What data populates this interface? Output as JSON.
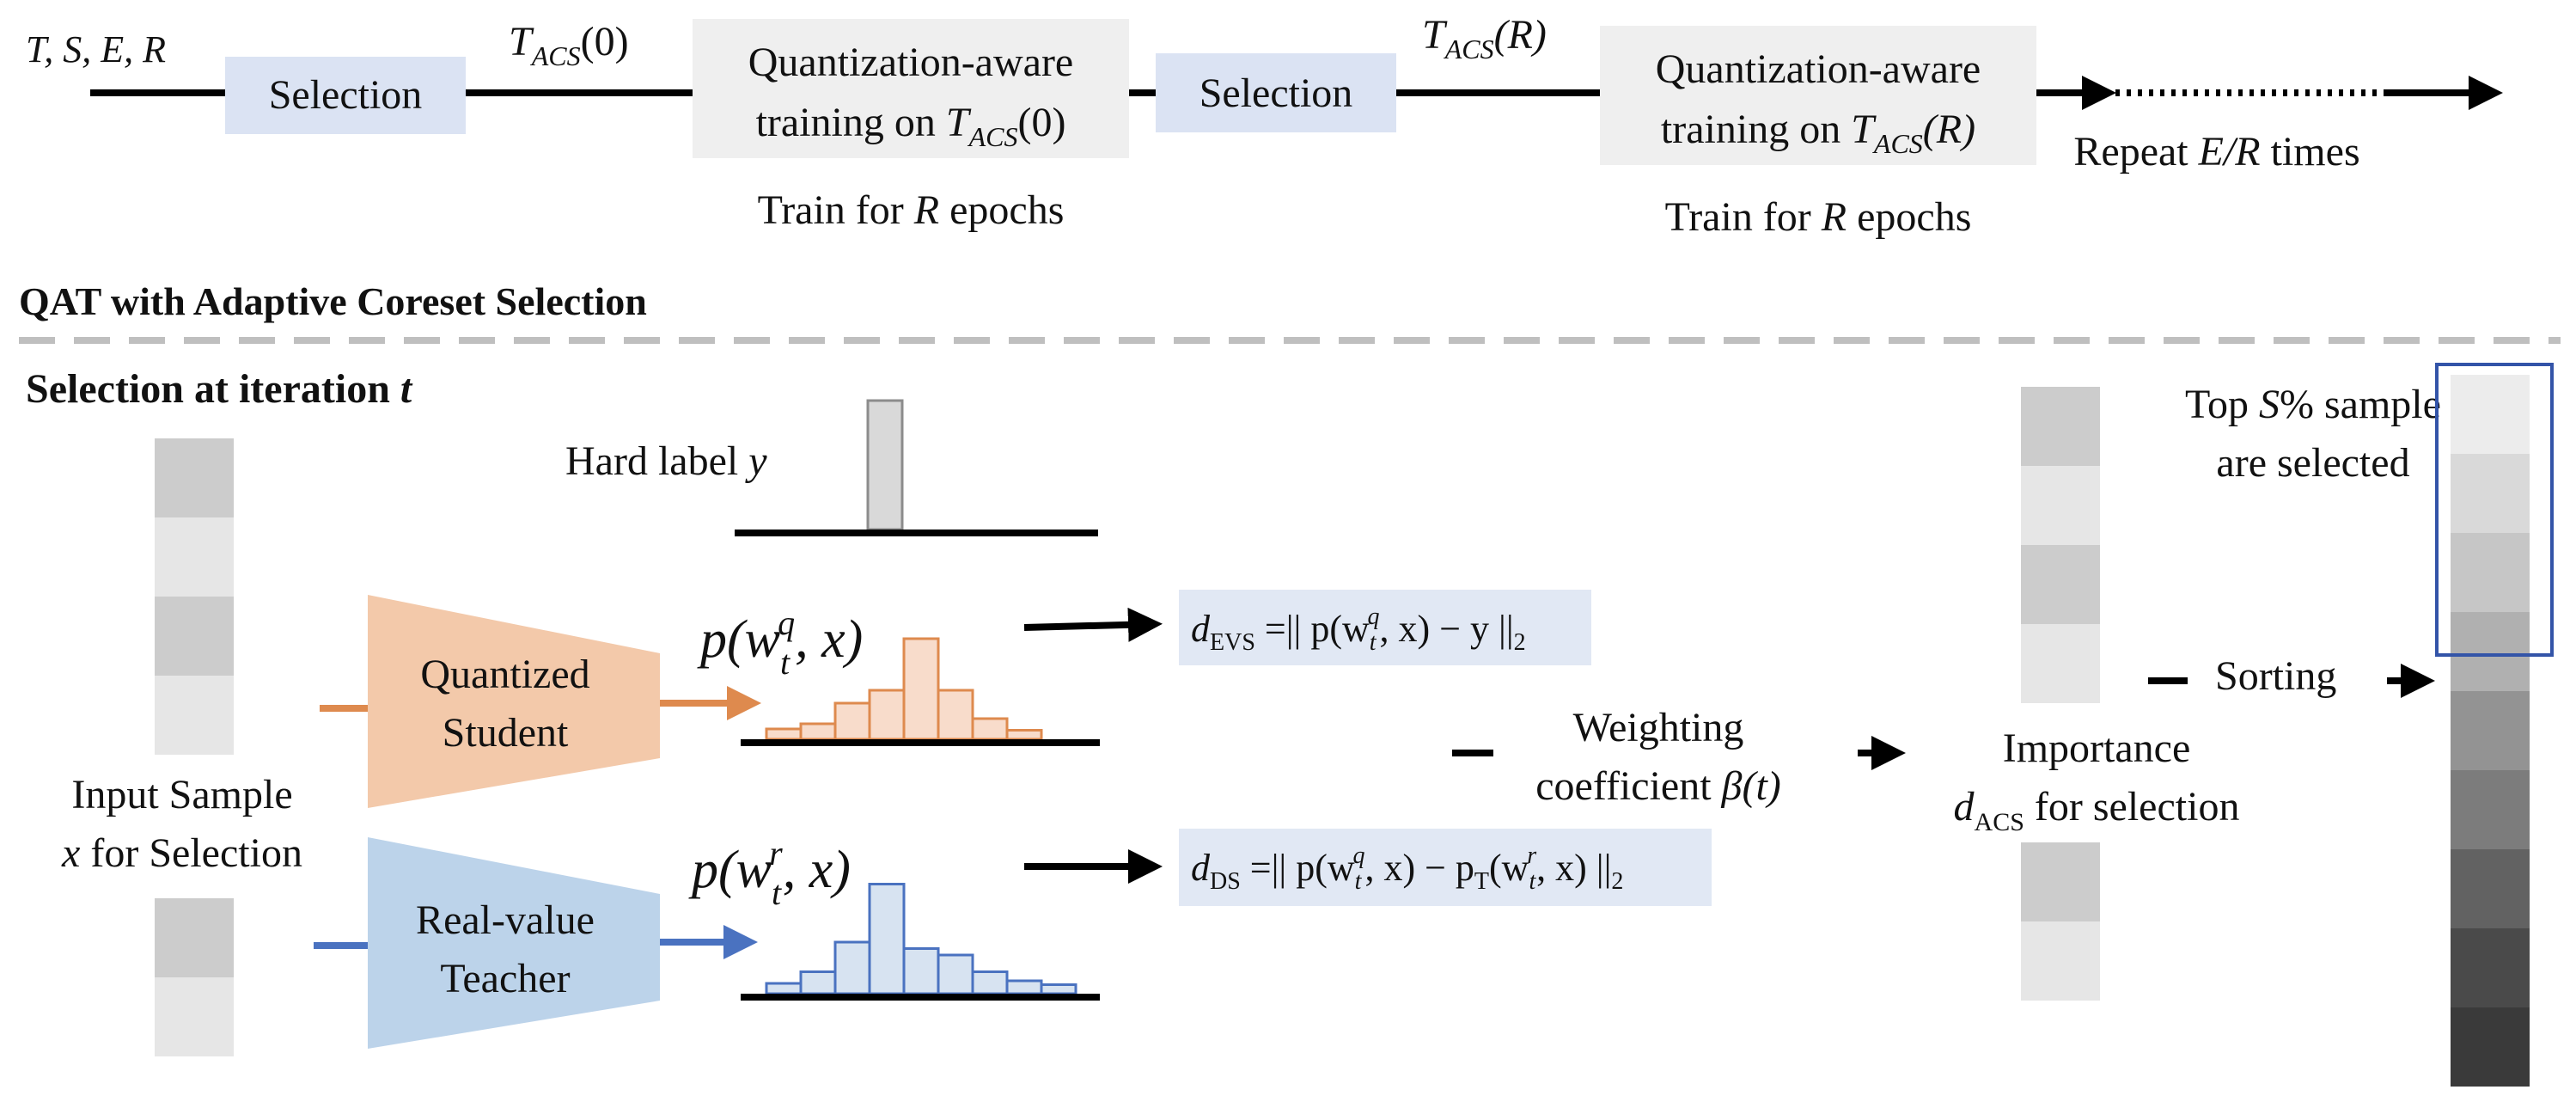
{
  "colors": {
    "selection_box": "#dbe3f3",
    "train_box": "#efefef",
    "formula_box": "#e1e8f4",
    "student": "#f3c9aa",
    "student_line": "#de8a4e",
    "student_bar": "#f8dccb",
    "teacher": "#bcd3ea",
    "teacher_line": "#4a72c0",
    "teacher_bar": "#d7e3f1",
    "divider": "#bfbfbf",
    "highlight_frame": "#3354a8"
  },
  "pipeline": {
    "inputs_label": "T, S, E, R",
    "selection_1": "Selection",
    "tacs0": {
      "base": "T",
      "sub": "ACS",
      "arg": "(0)"
    },
    "train_box_1": {
      "line1": "Quantization-aware",
      "line2_prefix": "training on ",
      "base": "T",
      "sub": "ACS",
      "arg": "(0)"
    },
    "train_caption_1": {
      "prefix": "Train for ",
      "var": "R",
      "suffix": " epochs"
    },
    "selection_2": "Selection",
    "tacsR": {
      "base": "T",
      "sub": "ACS",
      "arg": "(R)"
    },
    "train_box_2": {
      "line1": "Quantization-aware",
      "line2_prefix": "training on ",
      "base": "T",
      "sub": "ACS",
      "arg": "(R)"
    },
    "train_caption_2": {
      "prefix": "Train for ",
      "var": "R",
      "suffix": " epochs"
    },
    "repeat": {
      "prefix": "Repeat ",
      "var": "E/R",
      "suffix": " times"
    }
  },
  "section_title": "QAT with Adaptive Coreset Selection",
  "subsection": {
    "prefix": "Selection at iteration ",
    "var": "t"
  },
  "input_sample": {
    "line1": "Input Sample",
    "line2_var": "x",
    "line2_rest": " for Selection"
  },
  "hard_label": {
    "prefix": "Hard label ",
    "var": "y"
  },
  "student": {
    "line1": "Quantized",
    "line2": "Student"
  },
  "teacher": {
    "line1": "Real-value",
    "line2": "Teacher"
  },
  "student_output": {
    "fn": "p(w",
    "sub": "t",
    "sup": "q",
    "rest": ", x)"
  },
  "teacher_output": {
    "fn": "p(w",
    "sub": "t",
    "sup": "r",
    "rest": ", x)"
  },
  "d_evs": {
    "d": "d",
    "d_sub": "EVS",
    "eq": " =|| p(w",
    "w_sub": "t",
    "w_sup": "q",
    "tail": ", x) − y ||",
    "norm_sub": "2"
  },
  "d_ds": {
    "d": "d",
    "d_sub": "DS",
    "eq": " =|| p(w",
    "w_sub": "t",
    "w_sup": "q",
    "mid": ", x) − p",
    "p_sub": "T",
    "mid2": "(w",
    "w2_sub": "t",
    "w2_sup": "r",
    "tail": ", x) ||",
    "norm_sub": "2"
  },
  "weighting": {
    "line1": "Weighting",
    "line2_prefix": "coefficient ",
    "var": "β(t)"
  },
  "importance": {
    "line1": "Importance",
    "d": "d",
    "d_sub": "ACS",
    "line2_rest": " for selection"
  },
  "sorting": "Sorting",
  "top_selected": {
    "line1_prefix": "Top ",
    "var": "S",
    "line1_suffix": "% sample",
    "line2": "are selected"
  },
  "chart_data": [
    {
      "type": "bar",
      "title": "",
      "series": [
        {
          "values": [
            1
          ]
        }
      ]
    },
    {
      "type": "bar",
      "title": "",
      "series": [
        {
          "values": [
            0.08,
            0.12,
            0.28,
            0.38,
            0.78,
            0.38,
            0.16,
            0.07
          ]
        }
      ]
    },
    {
      "type": "bar",
      "title": "",
      "series": [
        {
          "values": [
            0.08,
            0.17,
            0.4,
            0.85,
            0.35,
            0.3,
            0.17,
            0.1,
            0.07
          ]
        }
      ]
    }
  ],
  "input_column_top": [
    "#cccccc",
    "#e6e6e6",
    "#cccccc",
    "#e6e6e6"
  ],
  "input_column_bottom": [
    "#cccccc",
    "#e6e6e6"
  ],
  "importance_column_top": [
    "#cccccc",
    "#e6e6e6",
    "#cccccc",
    "#e6e6e6"
  ],
  "importance_column_bottom": [
    "#cccccc",
    "#e6e6e6"
  ],
  "sorted_column": [
    "#ececec",
    "#d9d9d9",
    "#c6c6c6",
    "#b0b0b0",
    "#939393",
    "#7c7c7c",
    "#626262",
    "#4a4a4a",
    "#3a3a3a"
  ]
}
